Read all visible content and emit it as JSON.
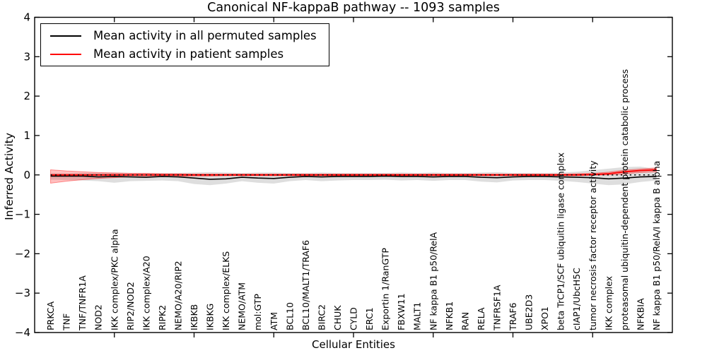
{
  "figure": {
    "title": "Canonical NF-kappaB pathway -- 1093 samples",
    "xlabel": "Cellular Entities",
    "ylabel": "Inferred Activity"
  },
  "legend": {
    "position": "upper left",
    "items": [
      {
        "label": "Mean activity in all permuted samples",
        "color": "#000000"
      },
      {
        "label": "Mean activity in patient samples",
        "color": "#ff0000"
      }
    ]
  },
  "chart_data": {
    "type": "line",
    "title": "Canonical NF-kappaB pathway -- 1093 samples",
    "xlabel": "Cellular Entities",
    "ylabel": "Inferred Activity",
    "ylim": [
      -4,
      4
    ],
    "ytick_values": [
      4,
      3,
      2,
      1,
      0,
      -1,
      -2,
      -3,
      -4
    ],
    "ytick_labels": [
      "4",
      "3",
      "2",
      "1",
      "0",
      "−1",
      "−2",
      "−3",
      "−4"
    ],
    "xtick_interval": 5,
    "grid": false,
    "legend_position": "upper left",
    "zero_line": {
      "style": "dotted",
      "color": "#000000",
      "value": 0
    },
    "categories": [
      "PRKCA",
      "TNF",
      "TNF/TNFR1A",
      "NOD2",
      "IKK complex/PKC alpha",
      "RIP2/NOD2",
      "IKK complex/A20",
      "RIPK2",
      "NEMO/A20/RIP2",
      "IKBKB",
      "IKBKG",
      "IKK complex/ELKS",
      "NEMO/ATM",
      "mol:GTP",
      "ATM",
      "BCL10",
      "BCL10/MALT1/TRAF6",
      "BIRC2",
      "CHUK",
      "CYLD",
      "ERC1",
      "Exportin 1/RanGTP",
      "FBXW11",
      "MALT1",
      "NF kappa B1 p50/RelA",
      "NFKB1",
      "RAN",
      "RELA",
      "TNFRSF1A",
      "TRAF6",
      "UBE2D3",
      "XPO1",
      "beta TrCP1/SCF ubiquitin ligase complex",
      "cIAP1/UbcH5C",
      "tumor necrosis factor receptor activity",
      "IKK complex",
      "proteasomal ubiquitin-dependent protein catabolic process",
      "NFKBIA",
      "NF kappa B1 p50/RelA/I kappa B alpha"
    ],
    "series": [
      {
        "name": "Mean activity in all permuted samples",
        "color": "#000000",
        "width": 1.6,
        "values": [
          -0.03,
          -0.03,
          -0.03,
          -0.05,
          -0.04,
          -0.05,
          -0.06,
          -0.04,
          -0.05,
          -0.08,
          -0.11,
          -0.1,
          -0.06,
          -0.08,
          -0.09,
          -0.06,
          -0.04,
          -0.05,
          -0.04,
          -0.04,
          -0.04,
          -0.03,
          -0.04,
          -0.04,
          -0.05,
          -0.04,
          -0.04,
          -0.06,
          -0.07,
          -0.05,
          -0.04,
          -0.04,
          -0.05,
          -0.06,
          -0.07,
          -0.1,
          -0.08,
          -0.05,
          -0.04
        ]
      },
      {
        "name": "Mean activity in patient samples",
        "color": "#ff0000",
        "width": 1.9,
        "values": [
          0,
          0,
          0,
          0,
          0,
          0,
          0,
          0,
          0,
          0,
          0,
          0,
          0,
          0,
          0,
          0,
          0,
          0,
          0,
          0,
          0,
          0,
          0,
          0,
          0,
          0,
          0,
          0,
          0,
          0,
          0,
          0,
          0,
          0,
          0.01,
          0.03,
          0.08,
          0.11,
          0.13
        ]
      }
    ],
    "bands": [
      {
        "name": "permuted samples range",
        "fill": "rgba(0,0,0,0.13)",
        "stroke": "none",
        "upper": [
          0.04,
          0.04,
          0.05,
          0.05,
          0.06,
          0.05,
          0.05,
          0.05,
          0.05,
          0.06,
          0.07,
          0.06,
          0.05,
          0.06,
          0.06,
          0.05,
          0.05,
          0.06,
          0.05,
          0.05,
          0.05,
          0.05,
          0.06,
          0.05,
          0.06,
          0.05,
          0.05,
          0.06,
          0.07,
          0.05,
          0.05,
          0.05,
          0.06,
          0.08,
          0.12,
          0.16,
          0.2,
          0.21,
          0.15
        ],
        "lower": [
          -0.12,
          -0.13,
          -0.14,
          -0.16,
          -0.2,
          -0.16,
          -0.15,
          -0.14,
          -0.16,
          -0.23,
          -0.26,
          -0.22,
          -0.16,
          -0.2,
          -0.22,
          -0.16,
          -0.13,
          -0.16,
          -0.14,
          -0.13,
          -0.13,
          -0.12,
          -0.14,
          -0.13,
          -0.15,
          -0.13,
          -0.13,
          -0.17,
          -0.19,
          -0.14,
          -0.13,
          -0.13,
          -0.15,
          -0.18,
          -0.22,
          -0.26,
          -0.24,
          -0.18,
          -0.14
        ]
      },
      {
        "name": "patient samples range",
        "fill": "rgba(255,0,0,0.25)",
        "stroke": "rgba(255,0,0,0.40)",
        "upper": [
          0.13,
          0.1,
          0.08,
          0.06,
          0.05,
          0.04,
          0.04,
          0.03,
          0.03,
          0.02,
          0.02,
          0.02,
          0.02,
          0.02,
          0.02,
          0.02,
          0.02,
          0.02,
          0.02,
          0.02,
          0.02,
          0.02,
          0.02,
          0.02,
          0.02,
          0.02,
          0.02,
          0.02,
          0.02,
          0.02,
          0.02,
          0.02,
          0.02,
          0.03,
          0.04,
          0.07,
          0.12,
          0.15,
          0.18
        ],
        "lower": [
          -0.21,
          -0.16,
          -0.12,
          -0.09,
          -0.07,
          -0.05,
          -0.05,
          -0.04,
          -0.04,
          -0.03,
          -0.03,
          -0.02,
          -0.02,
          -0.02,
          -0.02,
          -0.02,
          -0.02,
          -0.02,
          -0.02,
          -0.02,
          -0.02,
          -0.02,
          -0.02,
          -0.02,
          -0.02,
          -0.02,
          -0.02,
          -0.02,
          -0.02,
          -0.02,
          -0.02,
          -0.02,
          -0.02,
          -0.02,
          -0.01,
          0.0,
          0.03,
          0.06,
          0.08
        ]
      }
    ]
  }
}
